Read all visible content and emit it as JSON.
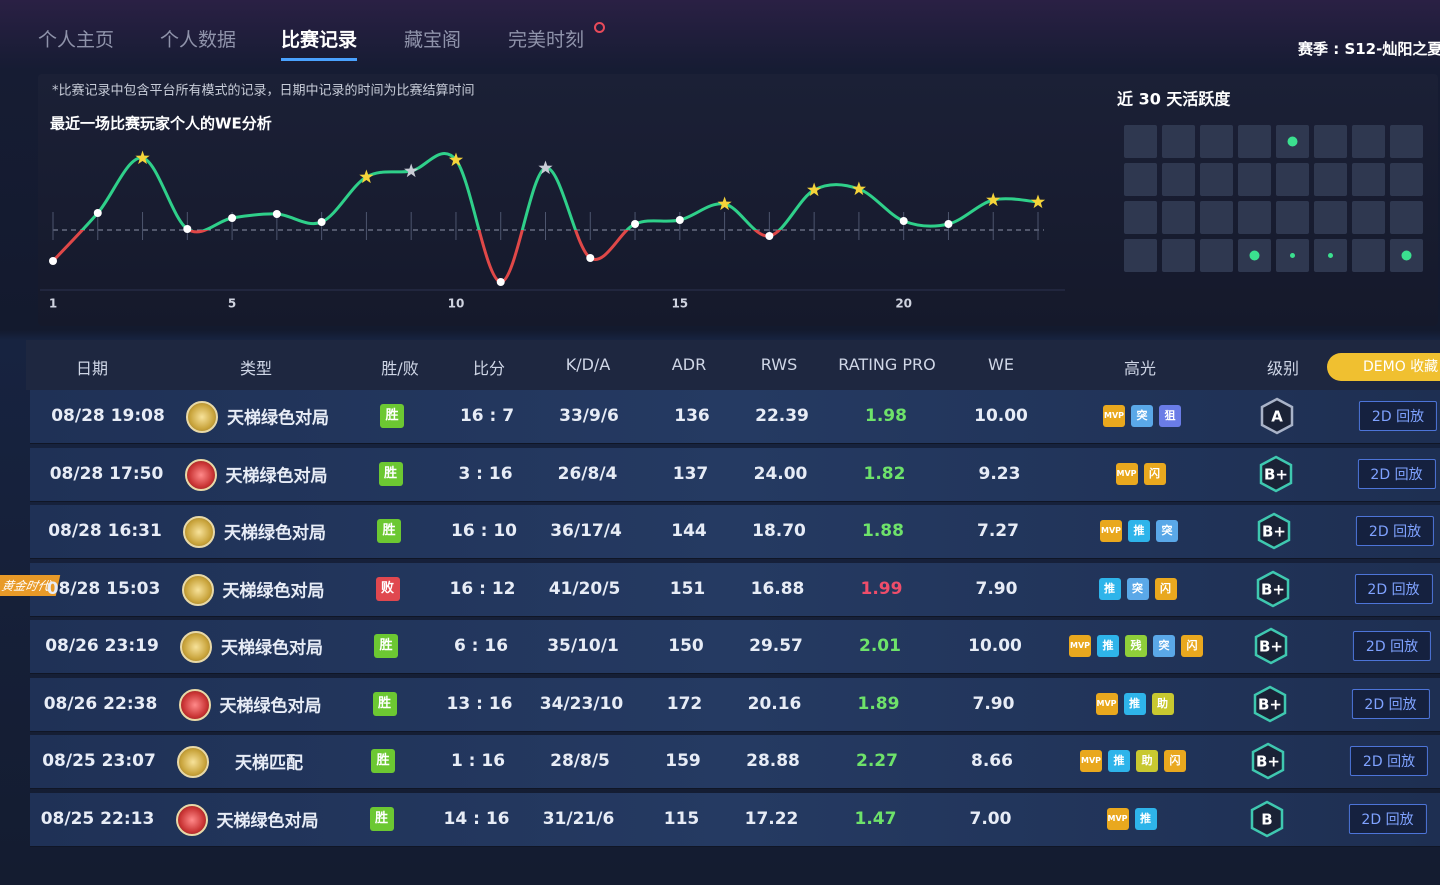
{
  "nav": {
    "tabs": [
      "个人主页",
      "个人数据",
      "比赛记录",
      "藏宝阁",
      "完美时刻"
    ],
    "active": 2,
    "season": "赛季 : S12-灿阳之夏"
  },
  "note": "*比赛记录中包含平台所有模式的记录，日期中记录的时间为比赛结算时间",
  "chart_data": {
    "type": "line",
    "title": "最近一场比赛玩家个人的WE分析",
    "x": [
      1,
      2,
      3,
      4,
      5,
      6,
      7,
      8,
      9,
      10,
      11,
      12,
      13,
      14,
      15,
      16,
      17,
      18,
      19,
      20,
      21,
      22,
      23
    ],
    "xlim": [
      1,
      23
    ],
    "xticks": [
      1,
      5,
      10,
      15,
      20
    ],
    "ylim": [
      -6,
      9
    ],
    "series": [
      {
        "color": "#2fd08a",
        "negative_color": "#e04848",
        "values": [
          -3.1,
          1.7,
          7.2,
          0.1,
          1.2,
          1.6,
          0.8,
          5.3,
          5.9,
          7.0,
          -5.2,
          6.2,
          -2.8,
          0.6,
          1.0,
          2.6,
          -0.6,
          4.0,
          4.1,
          0.9,
          0.6,
          3.0,
          2.8
        ],
        "markers": [
          "dot",
          "dot",
          "star",
          "dot",
          "dot",
          "dot",
          "dot",
          "star",
          "gray-star",
          "star",
          "dot",
          "gray-star",
          "dot",
          "dot",
          "dot",
          "star",
          "dot",
          "star",
          "star",
          "dot",
          "dot",
          "star",
          "star"
        ]
      }
    ]
  },
  "activity": {
    "title": "近 30 天活跃度",
    "cells": [
      [
        0,
        0,
        0,
        0,
        2,
        0,
        0,
        0
      ],
      [
        0,
        0,
        0,
        0,
        0,
        0,
        0,
        0
      ],
      [
        0,
        0,
        0,
        0,
        0,
        0,
        0,
        0
      ],
      [
        0,
        0,
        0,
        2,
        1,
        1,
        0,
        2
      ]
    ]
  },
  "table": {
    "headers": [
      "日期",
      "类型",
      "胜/败",
      "比分",
      "K/D/A",
      "ADR",
      "RWS",
      "RATING PRO",
      "WE",
      "高光",
      "级别",
      "DEMO 收藏"
    ],
    "rows": [
      {
        "date": "08/28 19:08",
        "icon": "gold",
        "type": "天梯绿色对局",
        "result": {
          "label": "胜",
          "color": "#6cc832"
        },
        "score": "16 : 7",
        "kda": "33/9/6",
        "adr": "136",
        "rws": "22.39",
        "rating": {
          "label": "1.98",
          "color": "#6ee26a"
        },
        "we": "10.00",
        "highlights": [
          {
            "label": "MVP",
            "color": "#e9a81e"
          },
          {
            "label": "突",
            "color": "#5aa8e8"
          },
          {
            "label": "狙",
            "color": "#6a7ce6"
          }
        ],
        "grade": {
          "label": "A",
          "color": "#a9b3c8"
        },
        "replay": "2D 回放"
      },
      {
        "date": "08/28 17:50",
        "icon": "red",
        "type": "天梯绿色对局",
        "result": {
          "label": "胜",
          "color": "#6cc832"
        },
        "score": "3 : 16",
        "kda": "26/8/4",
        "adr": "137",
        "rws": "24.00",
        "rating": {
          "label": "1.82",
          "color": "#6ee26a"
        },
        "we": "9.23",
        "highlights": [
          {
            "label": "MVP",
            "color": "#e9a81e"
          },
          {
            "label": "闪",
            "color": "#e9a81e"
          }
        ],
        "grade": {
          "label": "B+",
          "color": "#3fc8b0"
        },
        "replay": "2D 回放"
      },
      {
        "date": "08/28 16:31",
        "icon": "gold",
        "type": "天梯绿色对局",
        "result": {
          "label": "胜",
          "color": "#6cc832"
        },
        "score": "16 : 10",
        "kda": "36/17/4",
        "adr": "144",
        "rws": "18.70",
        "rating": {
          "label": "1.88",
          "color": "#6ee26a"
        },
        "we": "7.27",
        "highlights": [
          {
            "label": "MVP",
            "color": "#e9a81e"
          },
          {
            "label": "推",
            "color": "#2eb4ea"
          },
          {
            "label": "突",
            "color": "#5aa8e8"
          }
        ],
        "grade": {
          "label": "B+",
          "color": "#3fc8b0"
        },
        "replay": "2D 回放"
      },
      {
        "date": "08/28 15:03",
        "icon": "gold",
        "type": "天梯绿色对局",
        "tag": "黄金时代",
        "result": {
          "label": "败",
          "color": "#e0484f"
        },
        "score": "16 : 12",
        "kda": "41/20/5",
        "adr": "151",
        "rws": "16.88",
        "rating": {
          "label": "1.99",
          "color": "#ef4d6a"
        },
        "we": "7.90",
        "highlights": [
          {
            "label": "推",
            "color": "#2eb4ea"
          },
          {
            "label": "突",
            "color": "#5aa8e8"
          },
          {
            "label": "闪",
            "color": "#e9a81e"
          }
        ],
        "grade": {
          "label": "B+",
          "color": "#3fc8b0"
        },
        "replay": "2D 回放"
      },
      {
        "date": "08/26 23:19",
        "icon": "gold",
        "type": "天梯绿色对局",
        "result": {
          "label": "胜",
          "color": "#6cc832"
        },
        "score": "6 : 16",
        "kda": "35/10/1",
        "adr": "150",
        "rws": "29.57",
        "rating": {
          "label": "2.01",
          "color": "#6ee26a"
        },
        "we": "10.00",
        "highlights": [
          {
            "label": "MVP",
            "color": "#e9a81e"
          },
          {
            "label": "推",
            "color": "#2eb4ea"
          },
          {
            "label": "残",
            "color": "#8fcf3a"
          },
          {
            "label": "突",
            "color": "#5aa8e8"
          },
          {
            "label": "闪",
            "color": "#e9a81e"
          }
        ],
        "grade": {
          "label": "B+",
          "color": "#3fc8b0"
        },
        "replay": "2D 回放"
      },
      {
        "date": "08/26 22:38",
        "icon": "red",
        "type": "天梯绿色对局",
        "result": {
          "label": "胜",
          "color": "#6cc832"
        },
        "score": "13 : 16",
        "kda": "34/23/10",
        "adr": "172",
        "rws": "20.16",
        "rating": {
          "label": "1.89",
          "color": "#6ee26a"
        },
        "we": "7.90",
        "highlights": [
          {
            "label": "MVP",
            "color": "#e9a81e"
          },
          {
            "label": "推",
            "color": "#2eb4ea"
          },
          {
            "label": "助",
            "color": "#c8c830"
          }
        ],
        "grade": {
          "label": "B+",
          "color": "#3fc8b0"
        },
        "replay": "2D 回放"
      },
      {
        "date": "08/25 23:07",
        "icon": "gold",
        "type": "天梯匹配",
        "result": {
          "label": "胜",
          "color": "#6cc832"
        },
        "score": "1 : 16",
        "kda": "28/8/5",
        "adr": "159",
        "rws": "28.88",
        "rating": {
          "label": "2.27",
          "color": "#6ee26a"
        },
        "we": "8.66",
        "highlights": [
          {
            "label": "MVP",
            "color": "#e9a81e"
          },
          {
            "label": "推",
            "color": "#2eb4ea"
          },
          {
            "label": "助",
            "color": "#c8c830"
          },
          {
            "label": "闪",
            "color": "#e9a81e"
          }
        ],
        "grade": {
          "label": "B+",
          "color": "#3fc8b0"
        },
        "replay": "2D 回放"
      },
      {
        "date": "08/25 22:13",
        "icon": "red",
        "type": "天梯绿色对局",
        "result": {
          "label": "胜",
          "color": "#6cc832"
        },
        "score": "14 : 16",
        "kda": "31/21/6",
        "adr": "115",
        "rws": "17.22",
        "rating": {
          "label": "1.47",
          "color": "#6ee26a"
        },
        "we": "7.00",
        "highlights": [
          {
            "label": "MVP",
            "color": "#e9a81e"
          },
          {
            "label": "推",
            "color": "#2eb4ea"
          }
        ],
        "grade": {
          "label": "B",
          "color": "#3fc8b0"
        },
        "replay": "2D 回放"
      }
    ]
  }
}
